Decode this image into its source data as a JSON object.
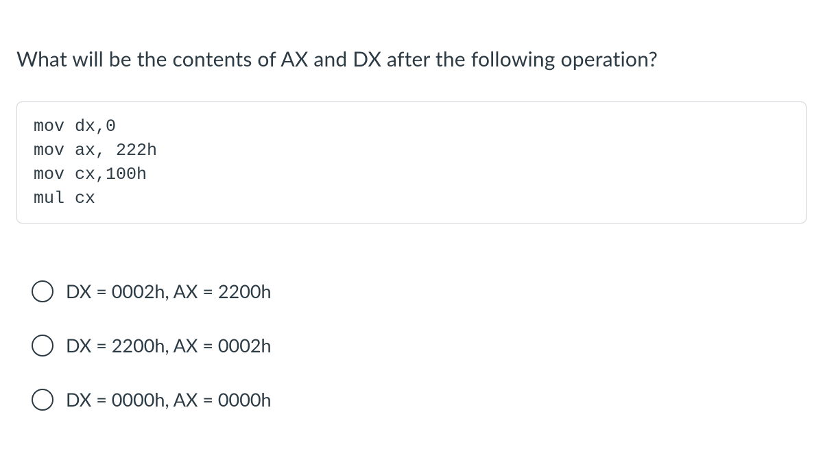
{
  "question": {
    "text": "What will be the contents of AX and DX after the following operation?",
    "code": "mov dx,0\nmov ax, 222h\nmov cx,100h\nmul cx"
  },
  "options": [
    {
      "label": "DX = 0002h, AX = 2200h",
      "selected": false
    },
    {
      "label": "DX = 2200h, AX = 0002h",
      "selected": false
    },
    {
      "label": "DX = 0000h, AX = 0000h",
      "selected": false
    }
  ],
  "styles": {
    "text_color": "#2d3b45",
    "border_color": "#d0d4d8",
    "radio_border_color": "#2d3b45",
    "background_color": "#ffffff",
    "question_fontsize": 30,
    "code_fontsize": 25,
    "option_fontsize": 27
  }
}
